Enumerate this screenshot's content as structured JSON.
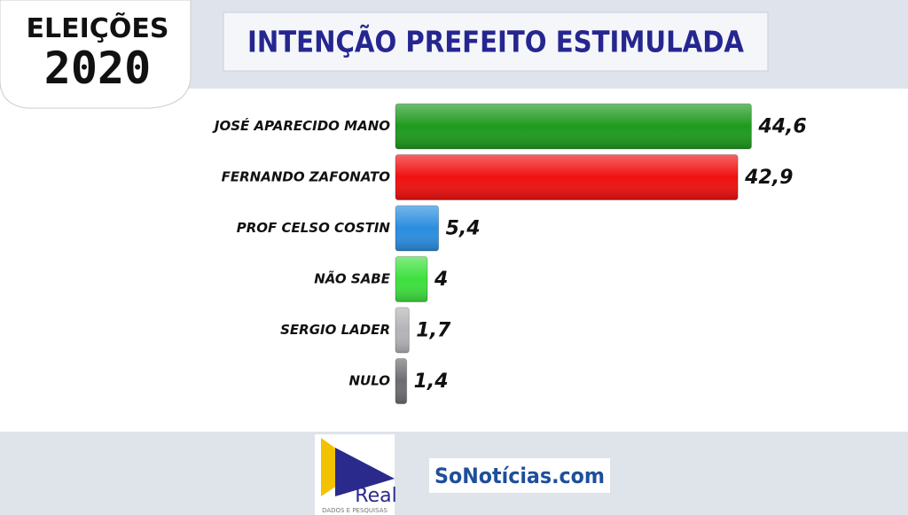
{
  "header": {
    "logo_top": "ELEIÇÕES",
    "logo_year": "2020"
  },
  "chart_data": {
    "type": "hbar",
    "title": "INTENÇÃO PREFEITO ESTIMULADA",
    "categories": [
      "JOSÉ APARECIDO MANO",
      "FERNANDO ZAFONATO",
      "PROF CELSO COSTIN",
      "NÃO SABE",
      "SERGIO LADER",
      "NULO"
    ],
    "values": [
      44.6,
      42.9,
      5.4,
      4,
      1.7,
      1.4
    ],
    "value_labels": [
      "44,6",
      "42,9",
      "5,4",
      "4",
      "1,7",
      "1,4"
    ],
    "colors": [
      "#1e9a1e",
      "#f01010",
      "#2a8ee0",
      "#3ee03e",
      "#b4b4b8",
      "#6e6e72"
    ]
  },
  "footer": {
    "brand": "Real",
    "brand_tagline": "DADOS E PESQUISAS",
    "site": "SoNotícias.com"
  }
}
